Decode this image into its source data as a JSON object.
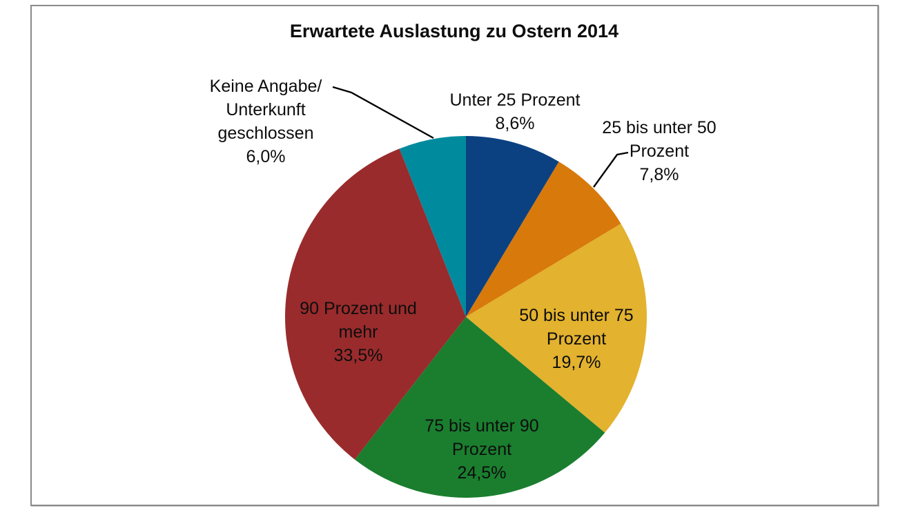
{
  "frame": {
    "border_color": "#8A8A8A",
    "background": "#FFFFFF"
  },
  "chart_data": {
    "type": "pie",
    "title": "Erwartete Auslastung zu Ostern 2014",
    "start_angle_deg": 0,
    "direction": "clockwise",
    "legend": "none",
    "text_color": "#0d0d0d",
    "slices": [
      {
        "label": "Unter 25 Prozent",
        "value": 8.6,
        "percent_display": "8,6%",
        "color": "#0B4181",
        "label_placement": "outside",
        "label_lines": [
          "Unter 25 Prozent",
          "8,6%"
        ]
      },
      {
        "label": "25 bis unter 50 Prozent",
        "value": 7.8,
        "percent_display": "7,8%",
        "color": "#D8790B",
        "label_placement": "outside-callout",
        "label_lines": [
          "25 bis unter 50",
          "Prozent",
          "7,8%"
        ]
      },
      {
        "label": "50 bis unter 75 Prozent",
        "value": 19.7,
        "percent_display": "19,7%",
        "color": "#E3B22E",
        "label_placement": "inside",
        "label_lines": [
          "50 bis unter 75",
          "Prozent",
          "19,7%"
        ]
      },
      {
        "label": "75 bis unter 90 Prozent",
        "value": 24.5,
        "percent_display": "24,5%",
        "color": "#1A7E2E",
        "label_placement": "inside",
        "label_lines": [
          "75 bis unter 90",
          "Prozent",
          "24,5%"
        ]
      },
      {
        "label": "90 Prozent und mehr",
        "value": 33.5,
        "percent_display": "33,5%",
        "color": "#992B2C",
        "label_placement": "inside",
        "label_lines": [
          "90 Prozent und",
          "mehr",
          "33,5%"
        ]
      },
      {
        "label": "Keine Angabe/Unterkunft geschlossen",
        "value": 6.0,
        "percent_display": "6,0%",
        "color": "#008A9E",
        "label_placement": "outside-callout",
        "label_lines": [
          "Keine Angabe/",
          "Unterkunft",
          "geschlossen",
          "6,0%"
        ]
      }
    ]
  }
}
